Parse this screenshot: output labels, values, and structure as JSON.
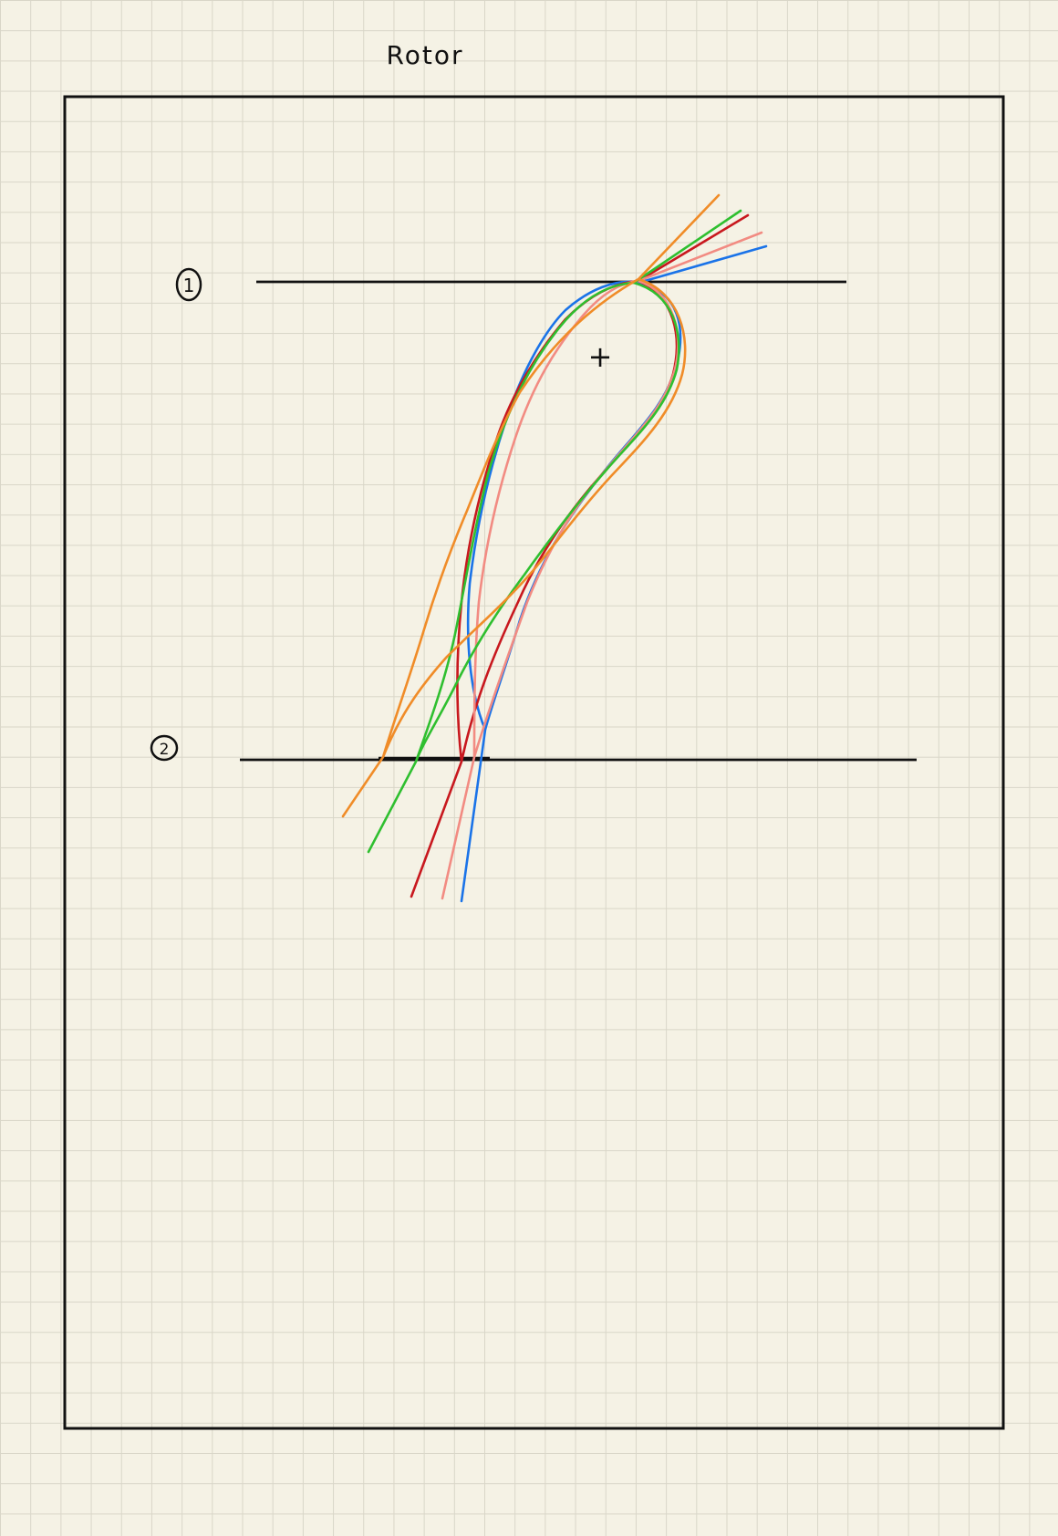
{
  "page": {
    "title": "Rotor",
    "background": "#f5f2e5",
    "grid_color": "#d9d6c8"
  },
  "stations": [
    {
      "label": "1"
    },
    {
      "label": "2"
    }
  ],
  "center_mark": "+",
  "blade_profiles": [
    {
      "color": "#1a73e8"
    },
    {
      "color": "#c8181e"
    },
    {
      "color": "#f28b82"
    },
    {
      "color": "#2fbf2f"
    },
    {
      "color": "#f08c28"
    }
  ]
}
